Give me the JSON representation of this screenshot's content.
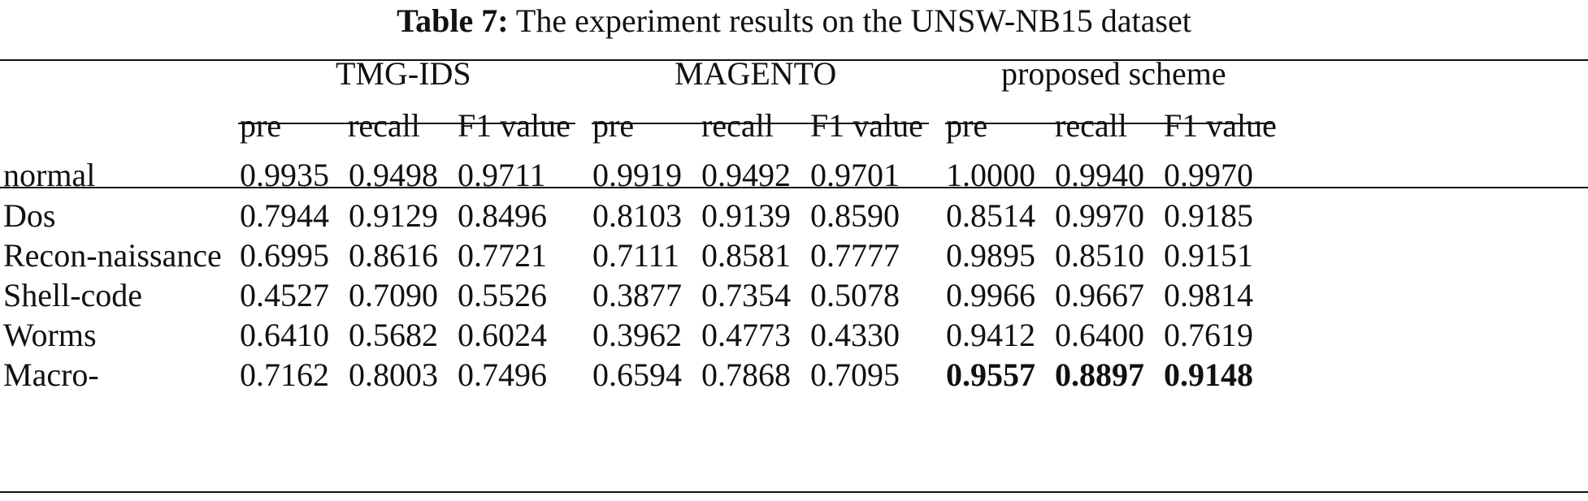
{
  "caption": {
    "label": "Table 7:",
    "text": "The experiment results on the UNSW-NB15 dataset"
  },
  "groups": [
    "TMG-IDS",
    "MAGENTO",
    "proposed scheme"
  ],
  "subheaders": [
    "pre",
    "recall",
    "F1 value",
    "pre",
    "recall",
    "F1 value",
    "pre",
    "recall",
    "F1 value"
  ],
  "rows": [
    {
      "label": "normal",
      "values": [
        "0.9935",
        "0.9498",
        "0.9711",
        "0.9919",
        "0.9492",
        "0.9701",
        "1.0000",
        "0.9940",
        "0.9970"
      ]
    },
    {
      "label": "Dos",
      "values": [
        "0.7944",
        "0.9129",
        "0.8496",
        "0.8103",
        "0.9139",
        "0.8590",
        "0.8514",
        "0.9970",
        "0.9185"
      ]
    },
    {
      "label": "Recon-naissance",
      "values": [
        "0.6995",
        "0.8616",
        "0.7721",
        "0.7111",
        "0.8581",
        "0.7777",
        "0.9895",
        "0.8510",
        "0.9151"
      ]
    },
    {
      "label": "Shell-code",
      "values": [
        "0.4527",
        "0.7090",
        "0.5526",
        "0.3877",
        "0.7354",
        "0.5078",
        "0.9966",
        "0.9667",
        "0.9814"
      ]
    },
    {
      "label": "Worms",
      "values": [
        "0.6410",
        "0.5682",
        "0.6024",
        "0.3962",
        "0.4773",
        "0.4330",
        "0.9412",
        "0.6400",
        "0.7619"
      ]
    },
    {
      "label": "Macro-",
      "values": [
        "0.7162",
        "0.8003",
        "0.7496",
        "0.6594",
        "0.7868",
        "0.7095",
        "0.9557",
        "0.8897",
        "0.9148"
      ]
    }
  ]
}
